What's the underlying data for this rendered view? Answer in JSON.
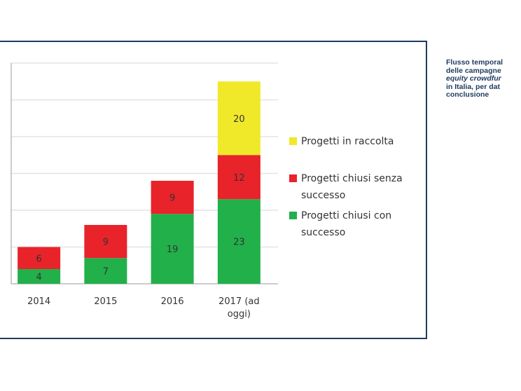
{
  "caption": {
    "line1": "Flusso temporal",
    "line2": "delle campagne",
    "line3": "equity crowdfur",
    "line4": "in Italia, per dat",
    "line5": "conclusione"
  },
  "chart_data": {
    "type": "bar",
    "stacked": true,
    "categories": [
      "2014",
      "2015",
      "2016",
      "2017 (ad oggi)"
    ],
    "category_lines": [
      [
        "2014"
      ],
      [
        "2015"
      ],
      [
        "2016"
      ],
      [
        "2017 (ad",
        "oggi)"
      ]
    ],
    "series": [
      {
        "name": "Progetti chiusi con successo",
        "name_lines": [
          "Progetti chiusi con",
          "successo"
        ],
        "color": "#22b04b",
        "values": [
          4,
          7,
          19,
          23
        ]
      },
      {
        "name": "Progetti chiusi senza successo",
        "name_lines": [
          "Progetti chiusi senza",
          "successo"
        ],
        "color": "#e8232a",
        "values": [
          6,
          9,
          9,
          12
        ]
      },
      {
        "name": "Progetti in raccolta",
        "name_lines": [
          "Progetti in raccolta"
        ],
        "color": "#f0e92a",
        "values": [
          0,
          0,
          0,
          20
        ]
      }
    ],
    "ylim": [
      0,
      60
    ],
    "grid": true,
    "legend": "right",
    "frame_color": "#1f3a5f"
  }
}
